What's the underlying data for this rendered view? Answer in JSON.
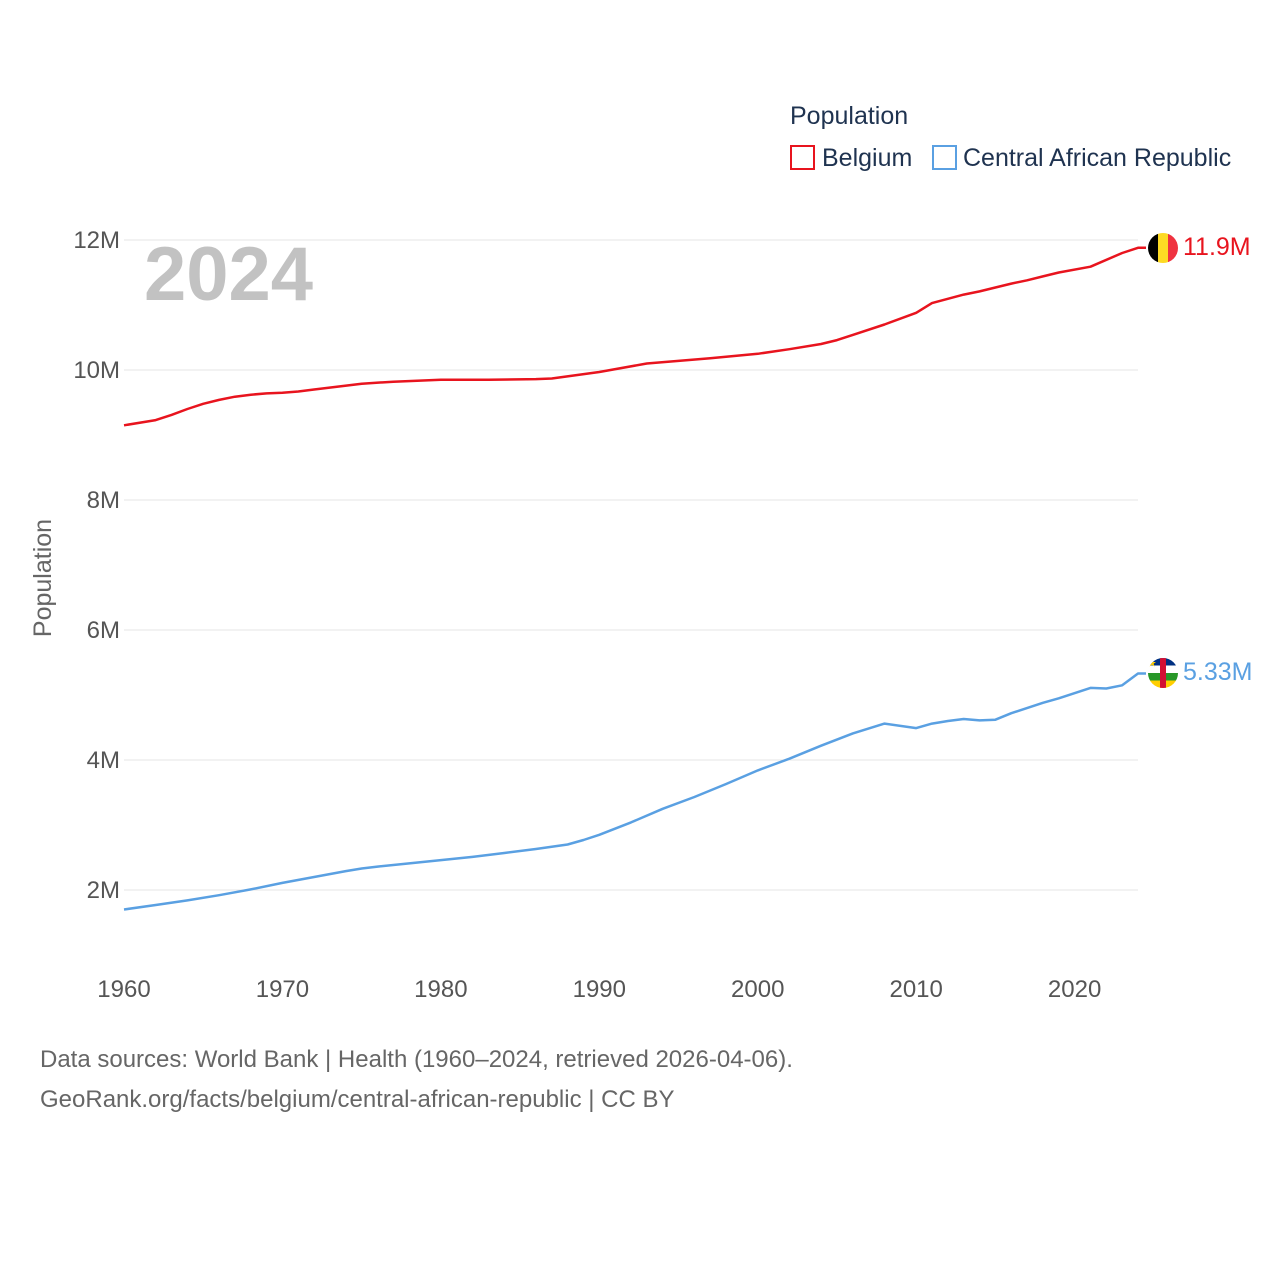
{
  "legend": {
    "title": "Population",
    "items": [
      {
        "label": "Belgium",
        "color": "#e8141e"
      },
      {
        "label": "Central African Republic",
        "color": "#5aa0e2"
      }
    ]
  },
  "watermark_year": "2024",
  "footer": {
    "line1": "Data sources: World Bank | Health (1960–2024, retrieved 2026-04-06).",
    "line2": "GeoRank.org/facts/belgium/central-african-republic | CC BY"
  },
  "colors": {
    "grid": "#e6e6e6",
    "text": "#1f3350",
    "tick": "#555555"
  },
  "chart_data": {
    "type": "line",
    "title": "",
    "xlabel": "",
    "ylabel": "Population",
    "xlim": [
      1960,
      2024
    ],
    "ylim": [
      1000000,
      12000000
    ],
    "x_ticks": [
      1960,
      1970,
      1980,
      1990,
      2000,
      2010,
      2020
    ],
    "x_tick_labels": [
      "1960",
      "1970",
      "1980",
      "1990",
      "2000",
      "2010",
      "2020"
    ],
    "y_ticks": [
      2000000,
      4000000,
      6000000,
      8000000,
      10000000,
      12000000
    ],
    "y_tick_labels": [
      "2M",
      "4M",
      "6M",
      "8M",
      "10M",
      "12M"
    ],
    "grid": true,
    "legend_position": "top-right",
    "series": [
      {
        "name": "Belgium",
        "color": "#e8141e",
        "end_label": "11.9M",
        "flag": "belgium-flag",
        "x": [
          1960,
          1962,
          1963,
          1964,
          1965,
          1966,
          1967,
          1968,
          1969,
          1970,
          1971,
          1972,
          1975,
          1977,
          1980,
          1983,
          1986,
          1987,
          1990,
          1993,
          1995,
          1997,
          2000,
          2002,
          2004,
          2005,
          2006,
          2008,
          2010,
          2011,
          2013,
          2014,
          2015,
          2016,
          2017,
          2018,
          2019,
          2021,
          2023,
          2024
        ],
        "values": [
          9150000,
          9230000,
          9310000,
          9400000,
          9480000,
          9540000,
          9590000,
          9620000,
          9640000,
          9650000,
          9670000,
          9700000,
          9790000,
          9820000,
          9850000,
          9850000,
          9860000,
          9870000,
          9970000,
          10100000,
          10140000,
          10180000,
          10250000,
          10320000,
          10400000,
          10460000,
          10540000,
          10700000,
          10880000,
          11030000,
          11160000,
          11210000,
          11270000,
          11330000,
          11380000,
          11440000,
          11500000,
          11590000,
          11800000,
          11880000
        ]
      },
      {
        "name": "Central African Republic",
        "color": "#5aa0e2",
        "end_label": "5.33M",
        "flag": "central-african-republic-flag",
        "x": [
          1960,
          1962,
          1964,
          1966,
          1968,
          1970,
          1972,
          1974,
          1975,
          1976,
          1978,
          1980,
          1982,
          1984,
          1986,
          1988,
          1989,
          1990,
          1992,
          1994,
          1996,
          1998,
          2000,
          2002,
          2004,
          2006,
          2008,
          2010,
          2011,
          2012,
          2013,
          2014,
          2015,
          2016,
          2018,
          2019,
          2021,
          2022,
          2023,
          2024
        ],
        "values": [
          1700000,
          1770000,
          1840000,
          1920000,
          2010000,
          2110000,
          2200000,
          2290000,
          2330000,
          2360000,
          2410000,
          2460000,
          2510000,
          2570000,
          2630000,
          2700000,
          2770000,
          2850000,
          3040000,
          3250000,
          3430000,
          3630000,
          3840000,
          4020000,
          4220000,
          4410000,
          4560000,
          4490000,
          4560000,
          4600000,
          4630000,
          4610000,
          4620000,
          4720000,
          4880000,
          4950000,
          5110000,
          5100000,
          5150000,
          5330000
        ]
      }
    ]
  }
}
